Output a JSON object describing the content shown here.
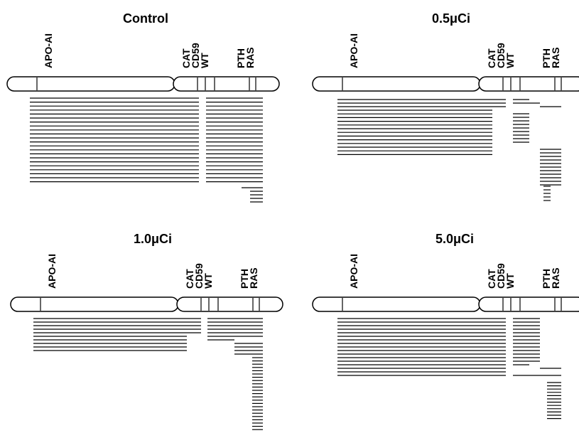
{
  "panels": [
    {
      "title": "Control",
      "markers": [
        "APO-AI",
        "CAT",
        "CD59",
        "WT",
        "PTH",
        "RAS"
      ]
    },
    {
      "title": "0.5μCi",
      "markers": [
        "APO-AI",
        "CAT",
        "CD59",
        "WT",
        "PTH",
        "RAS"
      ]
    },
    {
      "title": "1.0μCi",
      "markers": [
        "APO-AI",
        "CAT",
        "CD59",
        "WT",
        "PTH",
        "RAS"
      ]
    },
    {
      "title": "5.0μCi",
      "markers": [
        "APO-AI",
        "CAT",
        "CD59",
        "WT",
        "PTH",
        "RAS"
      ]
    }
  ]
}
